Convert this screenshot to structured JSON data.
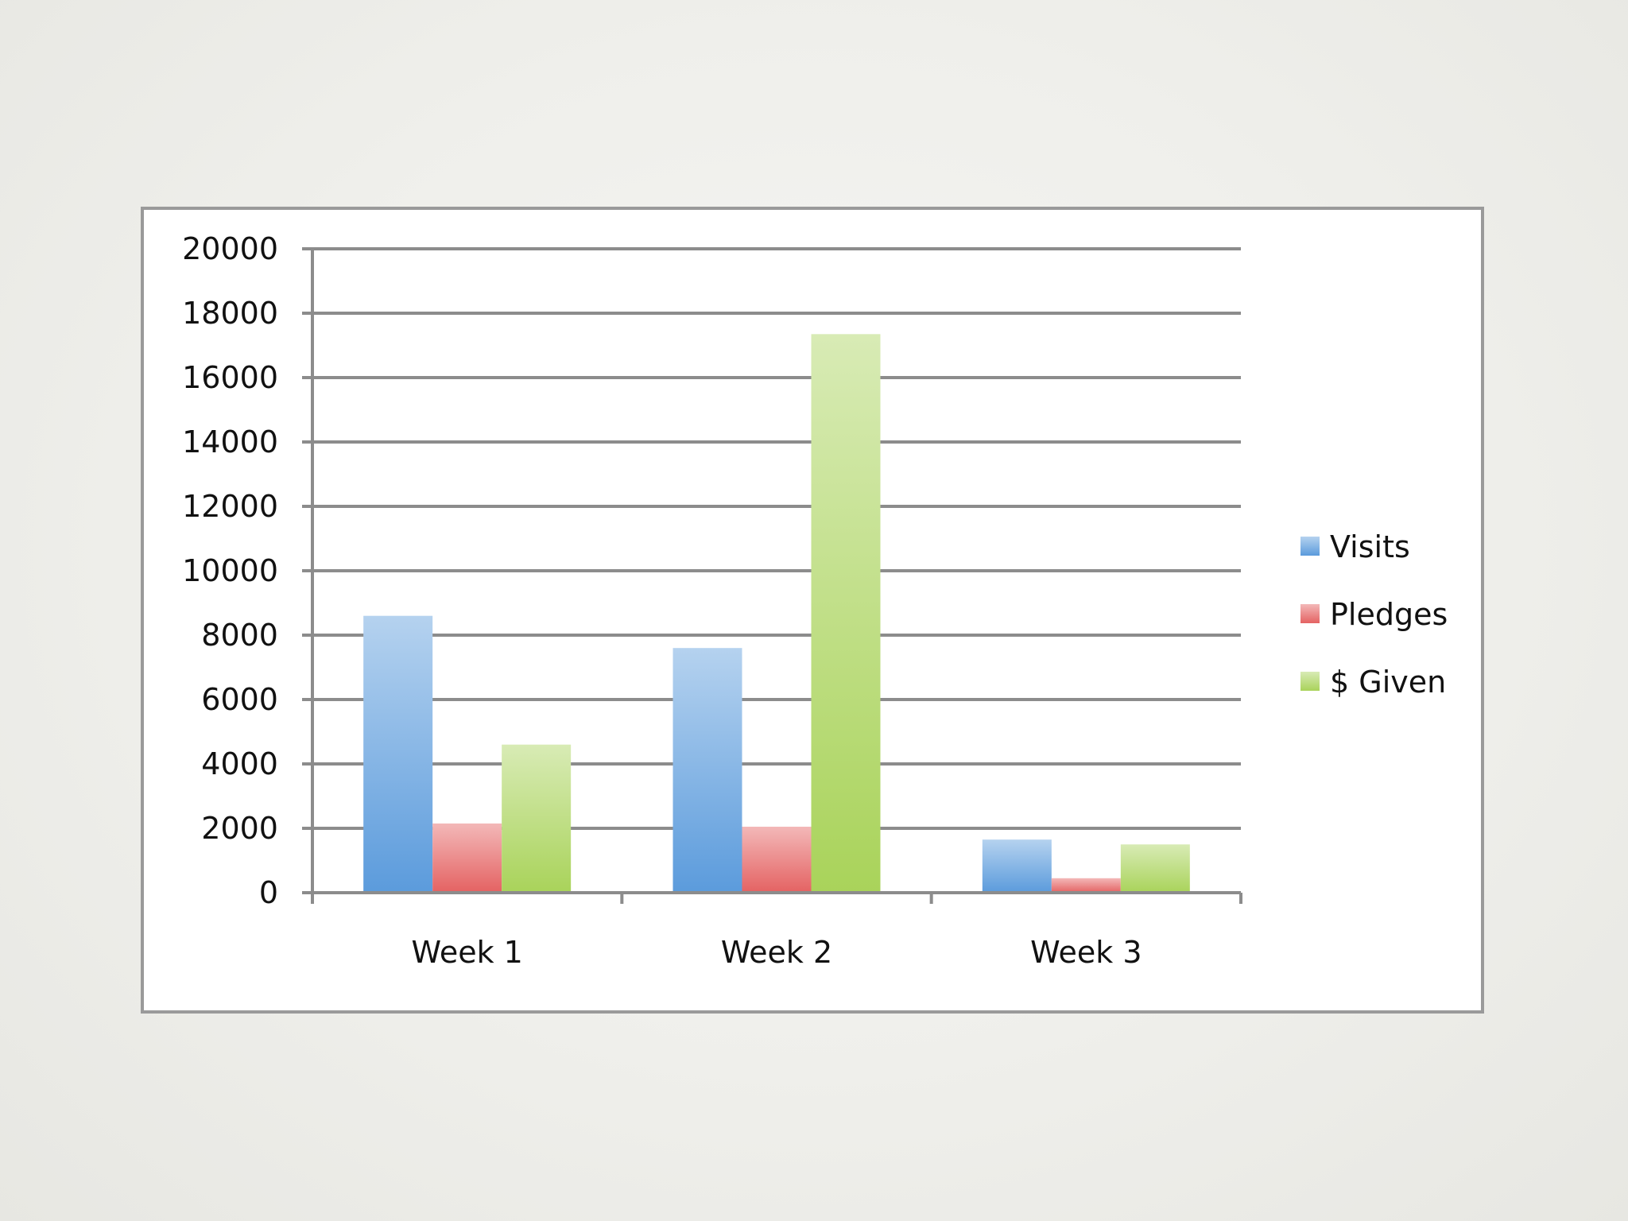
{
  "chart_data": {
    "type": "bar",
    "title": "",
    "xlabel": "",
    "ylabel": "",
    "categories": [
      "Week 1",
      "Week 2",
      "Week 3"
    ],
    "series": [
      {
        "name": "Visits",
        "values": [
          8600,
          7600,
          1650
        ],
        "color": "#5b9bdc"
      },
      {
        "name": "Pledges",
        "values": [
          2150,
          2050,
          450
        ],
        "color": "#e46262"
      },
      {
        "name": "$ Given",
        "values": [
          4600,
          17350,
          1500
        ],
        "color": "#a9d35a"
      }
    ],
    "ylim": [
      0,
      20000
    ],
    "yticks": [
      0,
      2000,
      4000,
      6000,
      8000,
      10000,
      12000,
      14000,
      16000,
      18000,
      20000
    ],
    "grid": true,
    "legend_position": "right"
  }
}
